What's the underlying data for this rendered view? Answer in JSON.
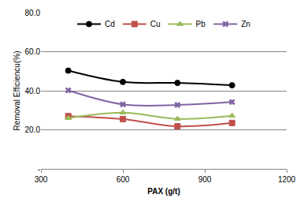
{
  "chart_data": {
    "type": "line",
    "x_label": "PAX (g/t)",
    "y_label": "Removal Efficiencu(%)",
    "x": [
      400,
      600,
      800,
      1000
    ],
    "series": [
      {
        "name": "Cd",
        "color": "#000000",
        "marker": "circle",
        "values": [
          50.3,
          44.5,
          44.0,
          42.8
        ]
      },
      {
        "name": "Cu",
        "color": "#c0504d",
        "marker": "square",
        "values": [
          27.0,
          25.5,
          21.8,
          23.5
        ]
      },
      {
        "name": "Pb",
        "color": "#9bbb59",
        "marker": "triangle-up",
        "values": [
          26.0,
          28.8,
          25.6,
          27.2
        ]
      },
      {
        "name": "Zn",
        "color": "#8064a2",
        "marker": "x",
        "values": [
          40.2,
          33.0,
          32.7,
          34.2
        ]
      }
    ],
    "line_style": "smooth",
    "xlim": [
      300,
      1200
    ],
    "xticks": [
      300,
      600,
      900,
      1200
    ],
    "ylim": [
      0,
      80
    ],
    "yticks": [
      {
        "value": 0,
        "label": "-"
      },
      {
        "value": 20,
        "label": "20.0"
      },
      {
        "value": 40,
        "label": "40.0"
      },
      {
        "value": 60,
        "label": "60.0"
      },
      {
        "value": 80,
        "label": "80.0"
      }
    ],
    "grid": true,
    "legend": "top"
  }
}
